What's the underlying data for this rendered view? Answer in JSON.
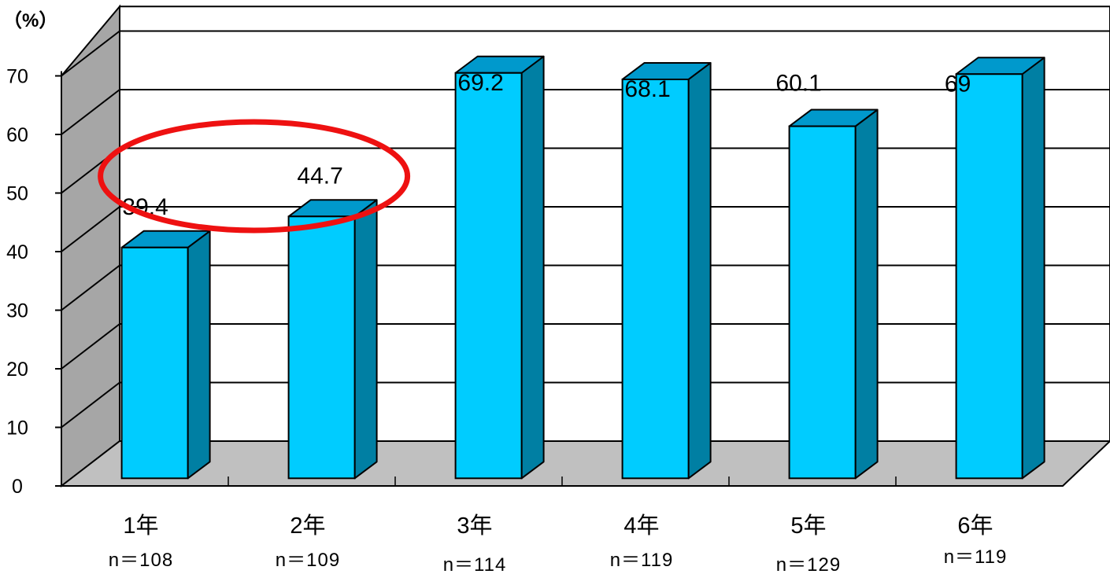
{
  "chart_data": {
    "type": "bar",
    "style": "3d-column",
    "unit_label": "（%）",
    "categories": [
      "1年",
      "2年",
      "3年",
      "4年",
      "5年",
      "6年"
    ],
    "sample_sizes": [
      "n＝108",
      "n＝109",
      "n＝114",
      "n＝119",
      "n＝129",
      "n＝119"
    ],
    "values": [
      39.4,
      44.7,
      69.2,
      68.1,
      60.1,
      69
    ],
    "value_labels": [
      "39.4",
      "44.7",
      "69.2",
      "68.1",
      "60.1",
      "69"
    ],
    "ylim": [
      0,
      70
    ],
    "yticks": [
      "0",
      "10",
      "20",
      "30",
      "40",
      "50",
      "60",
      "70"
    ],
    "grid": true,
    "highlight": {
      "categories": [
        "1年",
        "2年"
      ],
      "shape": "ellipse",
      "color": "#ee1111"
    },
    "colors": {
      "bar_front": "#00ccff",
      "bar_top": "#0099cc",
      "bar_side": "#007fa3",
      "back_wall": "#ffffff",
      "side_wall": "#a6a6a6",
      "floor": "#c0c0c0"
    }
  }
}
